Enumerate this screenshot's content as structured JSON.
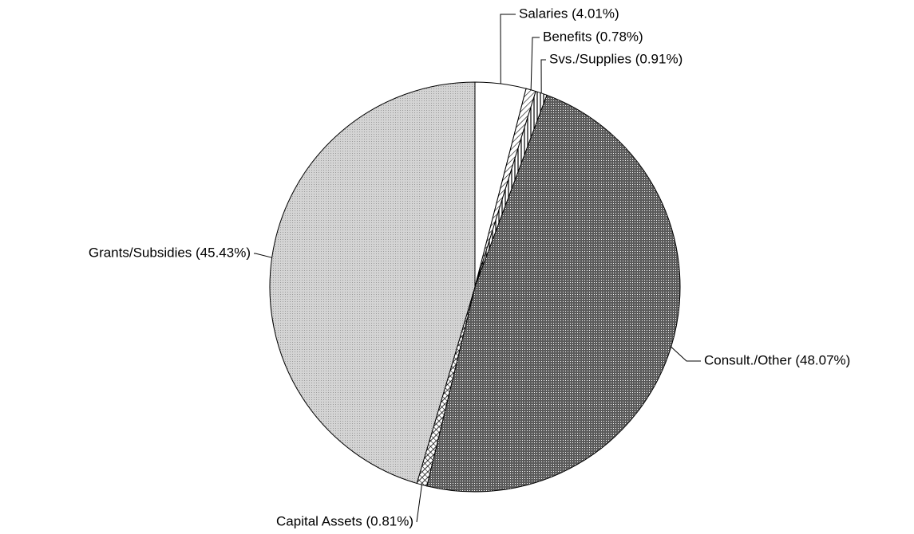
{
  "chart_data": {
    "type": "pie",
    "values": [
      4.01,
      0.78,
      0.91,
      48.07,
      0.81,
      45.43
    ],
    "value_labels": [
      "Salaries (4.01%)",
      "Benefits (0.78%)",
      "Svs./Supplies (0.91%)",
      "Consult./Other (48.07%)",
      "Capital Assets (0.81%)",
      "Grants/Subsidies (45.43%)"
    ],
    "colors": [
      "#ffffff",
      "#ffffff",
      "#ffffff",
      "#5a5a5a",
      "#ffffff",
      "#d4d4d4"
    ]
  }
}
